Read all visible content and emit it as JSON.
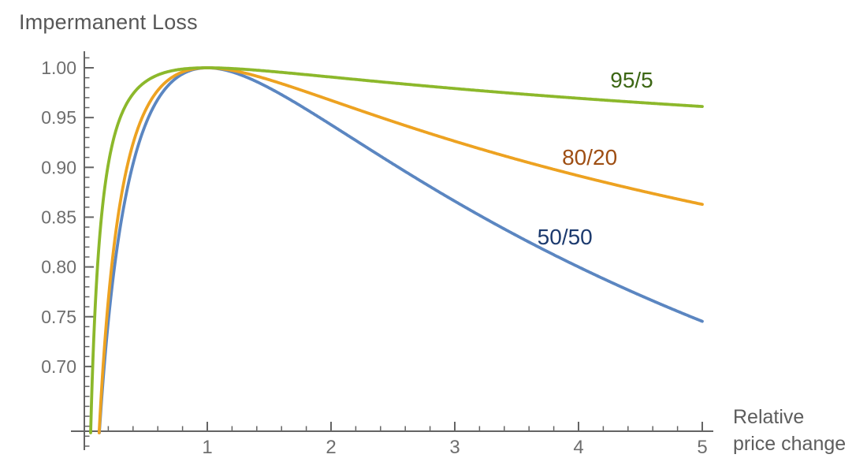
{
  "title": {
    "text": "Impermanent Loss",
    "color": "#575757"
  },
  "axes": {
    "stroke_color": "#646464",
    "tick_label_color": "#6e6e6e",
    "x": {
      "label_line1": "Relative",
      "label_line2": "price change",
      "label_color": "#5d5d5d",
      "major_ticks": [
        1,
        2,
        3,
        4,
        5
      ],
      "minor_tick_step": 0.2,
      "range": [
        0,
        5.1
      ]
    },
    "y": {
      "major_ticks": [
        "0.70",
        "0.75",
        "0.80",
        "0.85",
        "0.90",
        "0.95",
        "1.00"
      ],
      "major_tick_values": [
        0.7,
        0.75,
        0.8,
        0.85,
        0.9,
        0.95,
        1.0
      ],
      "minor_tick_step": 0.01,
      "range": [
        0.632,
        1.015
      ]
    }
  },
  "chart_data": {
    "type": "line",
    "title": "Impermanent Loss",
    "xlabel": "Relative price change",
    "ylabel": "Impermanent Loss",
    "xlim": [
      0,
      5.1
    ],
    "ylim": [
      0.632,
      1.015
    ],
    "grid": false,
    "legend": "inline-curve-labels",
    "x_sample": [
      0.1,
      0.2,
      0.5,
      1,
      2,
      3,
      4,
      5
    ],
    "series": [
      {
        "name": "50/50",
        "label": "50/50",
        "weight": 0.5,
        "formula": "v = p^0.5 / (0.5*p + 0.5)",
        "color": "#5b86c1",
        "label_color": "#1c3a6e",
        "label_pos": {
          "x": 3.89,
          "y": 0.83
        },
        "values": [
          0.575,
          0.745,
          0.943,
          1.0,
          0.943,
          0.866,
          0.8,
          0.745
        ]
      },
      {
        "name": "80/20",
        "label": "80/20",
        "weight": 0.8,
        "formula": "v = p^0.8 / (0.8*p + 0.2)",
        "color": "#eda221",
        "label_color": "#9e4e13",
        "label_pos": {
          "x": 4.09,
          "y": 0.91
        },
        "values": [
          0.566,
          0.767,
          0.957,
          1.0,
          0.967,
          0.926,
          0.891,
          0.863
        ]
      },
      {
        "name": "95/5",
        "label": "95/5",
        "weight": 0.95,
        "formula": "v = p^0.95 / (0.95*p + 0.05)",
        "color": "#8cb82b",
        "label_color": "#3c6614",
        "label_pos": {
          "x": 4.43,
          "y": 0.987
        },
        "values": [
          0.774,
          0.903,
          0.987,
          1.0,
          0.991,
          0.98,
          0.969,
          0.961
        ]
      }
    ]
  }
}
